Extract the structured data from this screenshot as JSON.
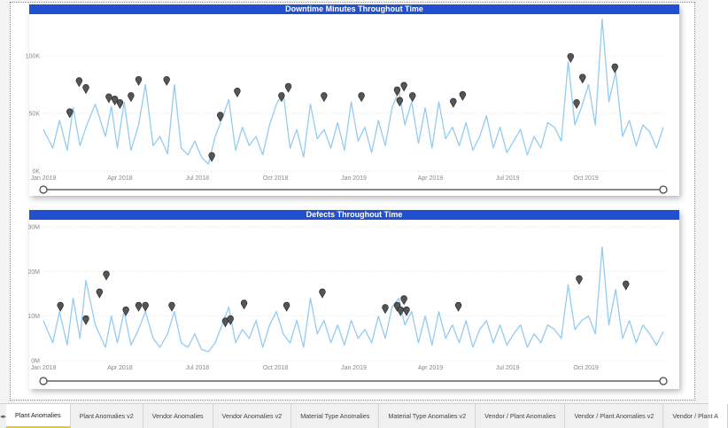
{
  "chart_data": [
    {
      "type": "line",
      "title": "Downtime Minutes Throughout Time",
      "x_range": [
        "2018-01-01",
        "2019-12-31"
      ],
      "ylim": [
        0,
        130000
      ],
      "y_ticks": [
        {
          "value": 0,
          "label": "0K"
        },
        {
          "value": 50000,
          "label": "50K"
        },
        {
          "value": 100000,
          "label": "100K"
        }
      ],
      "x_ticks": [
        {
          "date": "2018-01-01",
          "label": "Jan 2018"
        },
        {
          "date": "2018-04-01",
          "label": "Apr 2018"
        },
        {
          "date": "2018-07-01",
          "label": "Jul 2018"
        },
        {
          "date": "2018-10-01",
          "label": "Oct 2018"
        },
        {
          "date": "2019-01-01",
          "label": "Jan 2019"
        },
        {
          "date": "2019-04-01",
          "label": "Apr 2019"
        },
        {
          "date": "2019-07-01",
          "label": "Jul 2019"
        },
        {
          "date": "2019-10-01",
          "label": "Oct 2019"
        }
      ],
      "grid": true,
      "line_color": "#94cbf0",
      "marker_color": "#555555",
      "series": [
        {
          "x": [
            "2018-01-01",
            "2018-01-12",
            "2018-01-20",
            "2018-01-29",
            "2018-02-05",
            "2018-02-13",
            "2018-02-20",
            "2018-03-03",
            "2018-03-15",
            "2018-03-22",
            "2018-03-29",
            "2018-04-06",
            "2018-04-14",
            "2018-04-23",
            "2018-05-01",
            "2018-05-10",
            "2018-05-18",
            "2018-05-27",
            "2018-06-04",
            "2018-06-12",
            "2018-06-20",
            "2018-06-28",
            "2018-07-06",
            "2018-07-14",
            "2018-07-22",
            "2018-07-30",
            "2018-08-07",
            "2018-08-15",
            "2018-08-23",
            "2018-08-31",
            "2018-09-08",
            "2018-09-16",
            "2018-09-24",
            "2018-10-02",
            "2018-10-10",
            "2018-10-18",
            "2018-10-26",
            "2018-11-03",
            "2018-11-11",
            "2018-11-19",
            "2018-11-27",
            "2018-12-05",
            "2018-12-13",
            "2018-12-21",
            "2018-12-29",
            "2019-01-06",
            "2019-01-14",
            "2019-01-22",
            "2019-01-30",
            "2019-02-07",
            "2019-02-15",
            "2019-02-23",
            "2019-03-02",
            "2019-03-10",
            "2019-03-18",
            "2019-03-26",
            "2019-04-03",
            "2019-04-11",
            "2019-04-19",
            "2019-04-27",
            "2019-05-05",
            "2019-05-13",
            "2019-05-21",
            "2019-05-29",
            "2019-06-06",
            "2019-06-14",
            "2019-06-22",
            "2019-06-30",
            "2019-07-08",
            "2019-07-16",
            "2019-07-24",
            "2019-08-01",
            "2019-08-09",
            "2019-08-17",
            "2019-08-25",
            "2019-09-02",
            "2019-09-10",
            "2019-09-18",
            "2019-09-26",
            "2019-10-04",
            "2019-10-12",
            "2019-10-20",
            "2019-10-28",
            "2019-11-05",
            "2019-11-13",
            "2019-11-21",
            "2019-11-29",
            "2019-12-07",
            "2019-12-15",
            "2019-12-23",
            "2019-12-31"
          ],
          "y": [
            36000,
            20000,
            44000,
            18000,
            55000,
            22000,
            38000,
            58000,
            30000,
            56000,
            20000,
            60000,
            18000,
            40000,
            75000,
            22000,
            30000,
            15000,
            75000,
            20000,
            14000,
            26000,
            12000,
            6000,
            30000,
            45000,
            62000,
            18000,
            38000,
            22000,
            30000,
            14000,
            40000,
            58000,
            68000,
            20000,
            36000,
            12000,
            58000,
            28000,
            36000,
            20000,
            42000,
            18000,
            60000,
            26000,
            38000,
            16000,
            44000,
            22000,
            55000,
            70000,
            40000,
            60000,
            24000,
            55000,
            20000,
            60000,
            28000,
            38000,
            22000,
            42000,
            18000,
            30000,
            48000,
            20000,
            38000,
            16000,
            26000,
            36000,
            14000,
            30000,
            20000,
            42000,
            38000,
            26000,
            95000,
            40000,
            56000,
            75000,
            40000,
            132000,
            60000,
            86000,
            30000,
            44000,
            22000,
            40000,
            34000,
            20000,
            38000
          ]
        }
      ],
      "anomalies": [
        {
          "x": "2018-02-01",
          "y": 46000
        },
        {
          "x": "2018-02-12",
          "y": 73000
        },
        {
          "x": "2018-02-20",
          "y": 67000
        },
        {
          "x": "2018-03-19",
          "y": 59000
        },
        {
          "x": "2018-03-26",
          "y": 57000
        },
        {
          "x": "2018-04-01",
          "y": 54000
        },
        {
          "x": "2018-04-14",
          "y": 60000
        },
        {
          "x": "2018-04-23",
          "y": 74000
        },
        {
          "x": "2018-05-26",
          "y": 74000
        },
        {
          "x": "2018-07-18",
          "y": 8000
        },
        {
          "x": "2018-07-28",
          "y": 43000
        },
        {
          "x": "2018-08-17",
          "y": 64000
        },
        {
          "x": "2018-10-08",
          "y": 60000
        },
        {
          "x": "2018-10-16",
          "y": 68000
        },
        {
          "x": "2018-11-27",
          "y": 60000
        },
        {
          "x": "2019-01-10",
          "y": 60000
        },
        {
          "x": "2019-02-21",
          "y": 65000
        },
        {
          "x": "2019-02-24",
          "y": 56000
        },
        {
          "x": "2019-03-01",
          "y": 69000
        },
        {
          "x": "2019-03-11",
          "y": 60000
        },
        {
          "x": "2019-04-28",
          "y": 55000
        },
        {
          "x": "2019-05-09",
          "y": 61000
        },
        {
          "x": "2019-09-13",
          "y": 94000
        },
        {
          "x": "2019-09-20",
          "y": 54000
        },
        {
          "x": "2019-09-27",
          "y": 76000
        },
        {
          "x": "2019-11-04",
          "y": 85000
        }
      ]
    },
    {
      "type": "line",
      "title": "Defects Throughout Time",
      "x_range": [
        "2018-01-01",
        "2019-12-31"
      ],
      "ylim": [
        0,
        30000000
      ],
      "y_ticks": [
        {
          "value": 0,
          "label": "0M"
        },
        {
          "value": 10000000,
          "label": "10M"
        },
        {
          "value": 20000000,
          "label": "20M"
        },
        {
          "value": 30000000,
          "label": "30M"
        }
      ],
      "x_ticks": [
        {
          "date": "2018-01-01",
          "label": "Jan 2018"
        },
        {
          "date": "2018-04-01",
          "label": "Apr 2018"
        },
        {
          "date": "2018-07-01",
          "label": "Jul 2018"
        },
        {
          "date": "2018-10-01",
          "label": "Oct 2018"
        },
        {
          "date": "2019-01-01",
          "label": "Jan 2019"
        },
        {
          "date": "2019-04-01",
          "label": "Apr 2019"
        },
        {
          "date": "2019-07-01",
          "label": "Jul 2019"
        },
        {
          "date": "2019-10-01",
          "label": "Oct 2019"
        }
      ],
      "grid": true,
      "line_color": "#94cbf0",
      "marker_color": "#555555",
      "series": [
        {
          "x": [
            "2018-01-01",
            "2018-01-12",
            "2018-01-20",
            "2018-01-29",
            "2018-02-05",
            "2018-02-13",
            "2018-02-20",
            "2018-03-03",
            "2018-03-15",
            "2018-03-22",
            "2018-03-29",
            "2018-04-06",
            "2018-04-14",
            "2018-04-23",
            "2018-05-01",
            "2018-05-10",
            "2018-05-18",
            "2018-05-27",
            "2018-06-04",
            "2018-06-12",
            "2018-06-20",
            "2018-06-28",
            "2018-07-06",
            "2018-07-14",
            "2018-07-22",
            "2018-07-30",
            "2018-08-07",
            "2018-08-15",
            "2018-08-23",
            "2018-08-31",
            "2018-09-08",
            "2018-09-16",
            "2018-09-24",
            "2018-10-02",
            "2018-10-10",
            "2018-10-18",
            "2018-10-26",
            "2018-11-03",
            "2018-11-11",
            "2018-11-19",
            "2018-11-27",
            "2018-12-05",
            "2018-12-13",
            "2018-12-21",
            "2018-12-29",
            "2019-01-06",
            "2019-01-14",
            "2019-01-22",
            "2019-01-30",
            "2019-02-07",
            "2019-02-15",
            "2019-02-23",
            "2019-03-02",
            "2019-03-10",
            "2019-03-18",
            "2019-03-26",
            "2019-04-03",
            "2019-04-11",
            "2019-04-19",
            "2019-04-27",
            "2019-05-05",
            "2019-05-13",
            "2019-05-21",
            "2019-05-29",
            "2019-06-06",
            "2019-06-14",
            "2019-06-22",
            "2019-06-30",
            "2019-07-08",
            "2019-07-16",
            "2019-07-24",
            "2019-08-01",
            "2019-08-09",
            "2019-08-17",
            "2019-08-25",
            "2019-09-02",
            "2019-09-10",
            "2019-09-18",
            "2019-09-26",
            "2019-10-04",
            "2019-10-12",
            "2019-10-20",
            "2019-10-28",
            "2019-11-05",
            "2019-11-13",
            "2019-11-21",
            "2019-11-29",
            "2019-12-07",
            "2019-12-15",
            "2019-12-23",
            "2019-12-31"
          ],
          "y": [
            9000000,
            4000000,
            11000000,
            3500000,
            14000000,
            5000000,
            18000000,
            8000000,
            3000000,
            10000000,
            4000000,
            11000000,
            3500000,
            7000000,
            11000000,
            5000000,
            3000000,
            6000000,
            11000000,
            4000000,
            3000000,
            6000000,
            2500000,
            2000000,
            4000000,
            8000000,
            12000000,
            4000000,
            7000000,
            5000000,
            9000000,
            3000000,
            8000000,
            11000000,
            6000000,
            4000000,
            9000000,
            3000000,
            14000000,
            6000000,
            9000000,
            4000000,
            8000000,
            3500000,
            9000000,
            5000000,
            7000000,
            4000000,
            10000000,
            5000000,
            12000000,
            14000000,
            8000000,
            11000000,
            4000000,
            10000000,
            3500000,
            11000000,
            5000000,
            8000000,
            4000000,
            9000000,
            3000000,
            7000000,
            9000000,
            4000000,
            8000000,
            3500000,
            6000000,
            8000000,
            3000000,
            6000000,
            4000000,
            8000000,
            7000000,
            5000000,
            17000000,
            7000000,
            9000000,
            10000000,
            6000000,
            25500000,
            8000000,
            16000000,
            5000000,
            9000000,
            4000000,
            8000000,
            6000000,
            3500000,
            6500000
          ]
        }
      ],
      "anomalies": [
        {
          "x": "2018-01-21",
          "y": 11000000
        },
        {
          "x": "2018-02-20",
          "y": 8000000
        },
        {
          "x": "2018-03-08",
          "y": 14000000
        },
        {
          "x": "2018-03-16",
          "y": 18000000
        },
        {
          "x": "2018-04-08",
          "y": 10000000
        },
        {
          "x": "2018-04-23",
          "y": 11000000
        },
        {
          "x": "2018-05-01",
          "y": 11000000
        },
        {
          "x": "2018-06-01",
          "y": 11000000
        },
        {
          "x": "2018-08-03",
          "y": 7500000
        },
        {
          "x": "2018-08-09",
          "y": 8000000
        },
        {
          "x": "2018-08-25",
          "y": 11500000
        },
        {
          "x": "2018-10-14",
          "y": 11000000
        },
        {
          "x": "2018-11-25",
          "y": 14000000
        },
        {
          "x": "2019-02-07",
          "y": 10500000
        },
        {
          "x": "2019-02-21",
          "y": 11000000
        },
        {
          "x": "2019-02-25",
          "y": 10000000
        },
        {
          "x": "2019-03-01",
          "y": 12500000
        },
        {
          "x": "2019-03-04",
          "y": 10000000
        },
        {
          "x": "2019-05-04",
          "y": 11000000
        },
        {
          "x": "2019-09-23",
          "y": 17000000
        },
        {
          "x": "2019-11-17",
          "y": 15800000
        }
      ]
    }
  ],
  "tabs": [
    {
      "label": "Plant Anomalies",
      "active": true
    },
    {
      "label": "Plant Anomalies v2",
      "active": false
    },
    {
      "label": "Vendor Anomalies",
      "active": false
    },
    {
      "label": "Vendor Anomalies v2",
      "active": false
    },
    {
      "label": "Material Type Anomalies",
      "active": false
    },
    {
      "label": "Material Type Anomalies v2",
      "active": false
    },
    {
      "label": "Vendor / Plant Anomalies",
      "active": false
    },
    {
      "label": "Vendor / Plant Anomalies v2",
      "active": false
    },
    {
      "label": "Vendor / Plant A",
      "active": false
    }
  ],
  "nav": {
    "prev_icon": "◂",
    "next_icon": "▸"
  }
}
